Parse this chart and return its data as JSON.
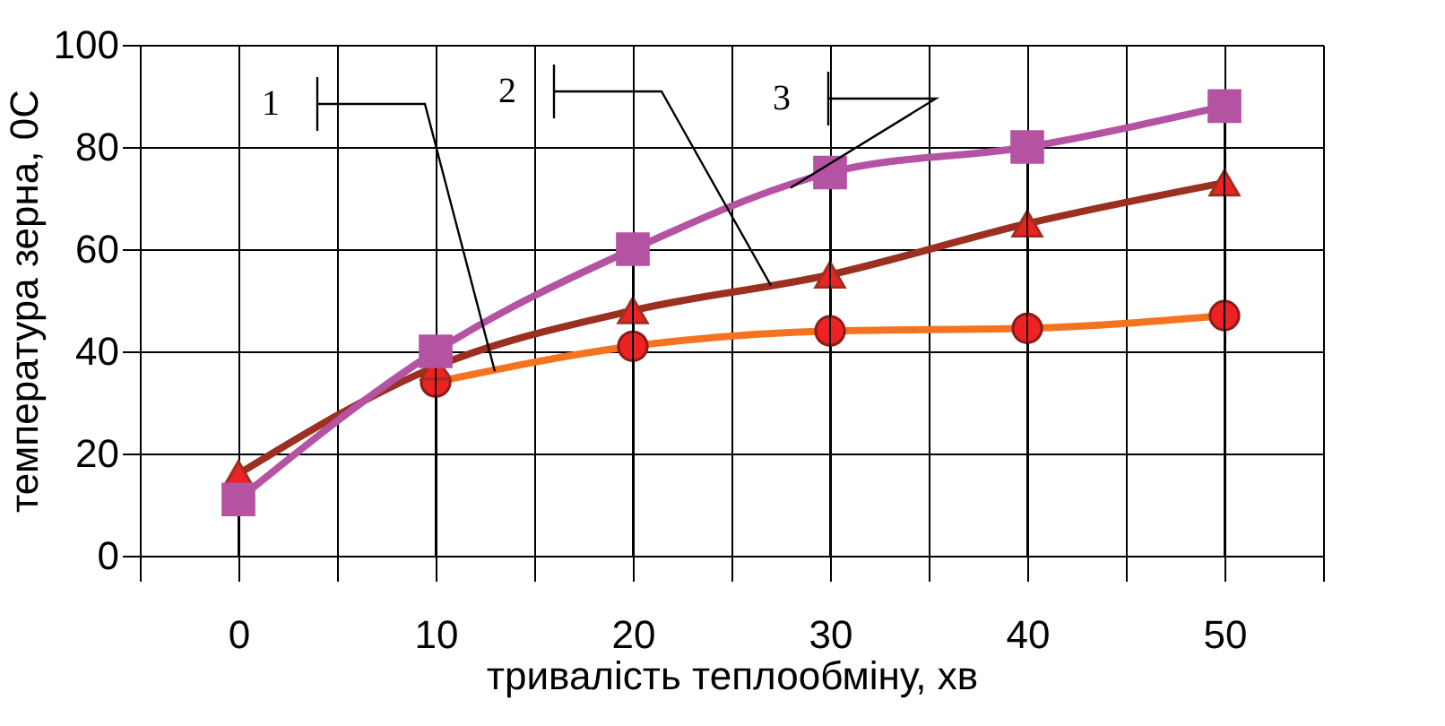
{
  "chart_data": {
    "type": "line",
    "xlabel": "тривалість теплообміну, хв",
    "ylabel": "температура зерна, 0С",
    "x": [
      0,
      10,
      20,
      30,
      40,
      50
    ],
    "series": [
      {
        "name": "1",
        "color": "#f47320",
        "values": [
          null,
          34,
          41,
          44,
          44.5,
          47
        ],
        "marker": "circle"
      },
      {
        "name": "2",
        "color": "#9b3020",
        "values": [
          16,
          37,
          48,
          55,
          65,
          73
        ],
        "marker": "triangle"
      },
      {
        "name": "3",
        "color": "#b553a3",
        "values": [
          11,
          40,
          60,
          75,
          80,
          88
        ],
        "marker": "square"
      }
    ],
    "xlim": [
      -5,
      55
    ],
    "ylim": [
      0,
      100
    ],
    "xticks": [
      {
        "value": -5,
        "label": null
      },
      0,
      {
        "value": 5,
        "label": null
      },
      10,
      {
        "value": 15,
        "label": null
      },
      20,
      {
        "value": 25,
        "label": null
      },
      30,
      {
        "value": 35,
        "label": null
      },
      40,
      {
        "value": 45,
        "label": null
      },
      50,
      {
        "value": 55,
        "label": null
      }
    ],
    "yticks": [
      0,
      20,
      40,
      60,
      80,
      100
    ],
    "grid": true,
    "legend": false,
    "line_style": "solid"
  }
}
